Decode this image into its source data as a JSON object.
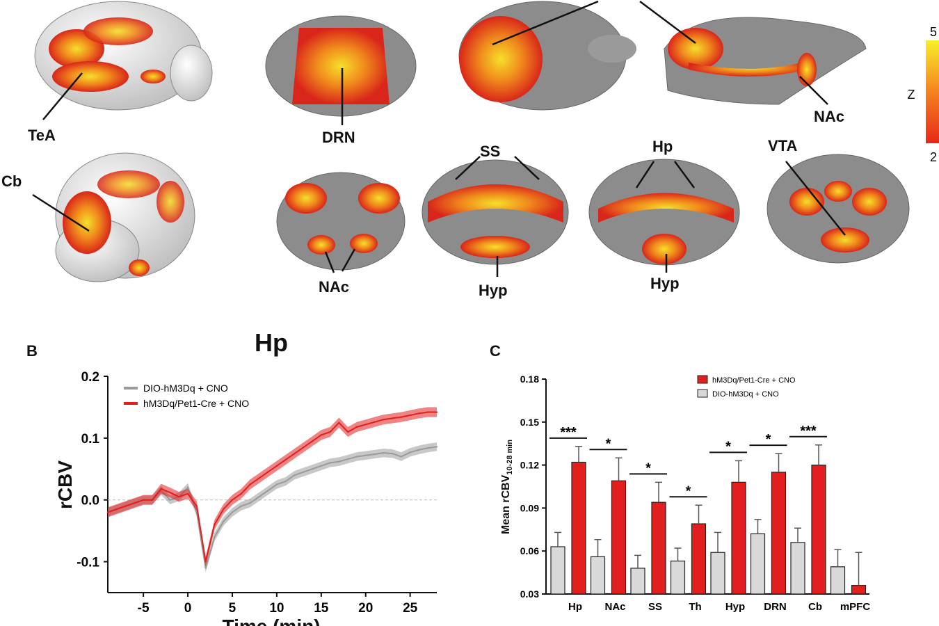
{
  "panel_a": {
    "labels": [
      "TeA",
      "Cb",
      "DRN",
      "NAc",
      "NAc",
      "SS",
      "Hyp",
      "Hp",
      "Hyp",
      "VTA",
      "NAc"
    ],
    "colorbar": {
      "max_label": "5",
      "min_label": "2",
      "title": "Z",
      "colors": [
        "#e8281a",
        "#f6f02a"
      ]
    }
  },
  "chart_data": [
    {
      "type": "line",
      "panel_label": "B",
      "title": "Hp",
      "xlabel": "Time (min)",
      "ylabel": "rCBV",
      "xlim": [
        -9,
        28
      ],
      "ylim": [
        -0.15,
        0.2
      ],
      "xticks": [
        "-5",
        "0",
        "5",
        "10",
        "15",
        "20",
        "25"
      ],
      "yticks": [
        "0.2",
        "0.1",
        "0.0",
        "-0.1"
      ],
      "legend_position": "top-left",
      "series": [
        {
          "name": "DIO-hM3Dq + CNO",
          "color": "#9a9a9a",
          "x": [
            -9,
            -8,
            -7,
            -6,
            -5,
            -4,
            -3,
            -2,
            -1,
            0,
            1,
            2,
            3,
            4,
            5,
            6,
            7,
            8,
            9,
            10,
            11,
            12,
            13,
            14,
            15,
            16,
            17,
            18,
            19,
            20,
            21,
            22,
            23,
            24,
            25,
            26,
            27,
            28
          ],
          "y": [
            -0.02,
            -0.015,
            -0.01,
            -0.005,
            0.0,
            0.0,
            0.015,
            0.0,
            0.005,
            0.02,
            -0.02,
            -0.11,
            -0.06,
            -0.035,
            -0.02,
            -0.01,
            -0.005,
            0.005,
            0.015,
            0.025,
            0.03,
            0.04,
            0.045,
            0.05,
            0.055,
            0.06,
            0.062,
            0.066,
            0.07,
            0.072,
            0.074,
            0.076,
            0.075,
            0.07,
            0.077,
            0.081,
            0.084,
            0.086
          ],
          "sem": 0.007
        },
        {
          "name": "hM3Dq/Pet1-Cre + CNO",
          "color": "#e11f1f",
          "x": [
            -9,
            -8,
            -7,
            -6,
            -5,
            -4,
            -3,
            -2,
            -1,
            0,
            1,
            2,
            3,
            4,
            5,
            6,
            7,
            8,
            9,
            10,
            11,
            12,
            13,
            14,
            15,
            16,
            17,
            18,
            19,
            20,
            21,
            22,
            23,
            24,
            25,
            26,
            27,
            28
          ],
          "y": [
            -0.02,
            -0.015,
            -0.01,
            -0.005,
            0.0,
            0.0,
            0.018,
            0.012,
            0.005,
            0.01,
            -0.01,
            -0.1,
            -0.04,
            -0.015,
            0.0,
            0.01,
            0.025,
            0.035,
            0.045,
            0.055,
            0.065,
            0.075,
            0.085,
            0.095,
            0.105,
            0.11,
            0.125,
            0.11,
            0.118,
            0.122,
            0.126,
            0.13,
            0.132,
            0.134,
            0.137,
            0.14,
            0.142,
            0.142
          ],
          "sem": 0.008
        }
      ]
    },
    {
      "type": "bar",
      "panel_label": "C",
      "xlabel": "",
      "ylabel": "Mean rCBV",
      "ylabel_sub": "10-28 min",
      "ylim": [
        0.03,
        0.18
      ],
      "yticks": [
        "0.18",
        "0.15",
        "0.12",
        "0.09",
        "0.06",
        "0.03"
      ],
      "legend_position": "top-right",
      "categories": [
        "Hp",
        "NAc",
        "SS",
        "Th",
        "Hyp",
        "DRN",
        "Cb",
        "mPFC"
      ],
      "significance": [
        "***",
        "*",
        "*",
        "*",
        "*",
        "*",
        "***",
        ""
      ],
      "series": [
        {
          "name": "hM3Dq/Pet1-Cre + CNO",
          "color": "#e11f1f",
          "values": [
            0.122,
            0.109,
            0.094,
            0.079,
            0.108,
            0.115,
            0.12,
            0.036
          ],
          "errors": [
            0.011,
            0.016,
            0.014,
            0.013,
            0.015,
            0.013,
            0.014,
            0.023
          ]
        },
        {
          "name": "DIO-hM3Dq + CNO",
          "color": "#d9d9d9",
          "values": [
            0.063,
            0.056,
            0.048,
            0.053,
            0.059,
            0.072,
            0.066,
            0.049
          ],
          "errors": [
            0.01,
            0.012,
            0.009,
            0.009,
            0.014,
            0.01,
            0.01,
            0.012
          ]
        }
      ]
    }
  ]
}
